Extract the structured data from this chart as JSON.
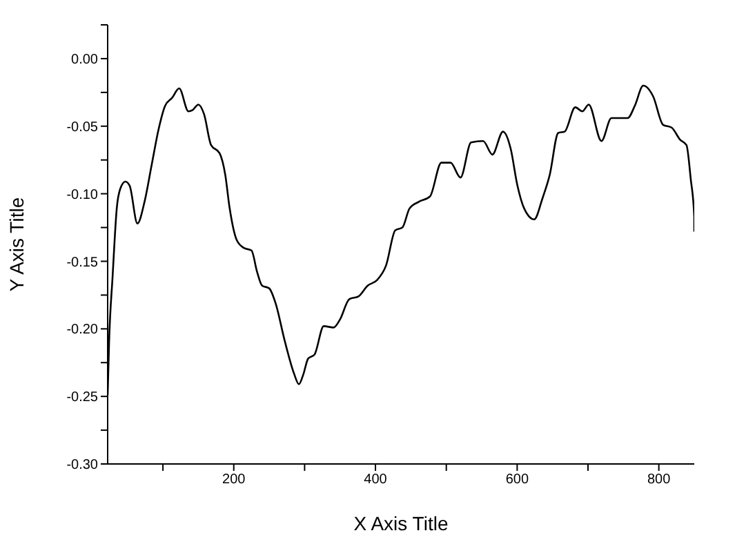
{
  "chart_data": {
    "type": "line",
    "xlabel": "X Axis Title",
    "ylabel": "Y Axis Title",
    "xlim": [
      22,
      850
    ],
    "ylim": [
      -0.3,
      0.025
    ],
    "xticks": [
      {
        "value": 100,
        "label": null
      },
      200,
      {
        "value": 300,
        "label": null
      },
      400,
      {
        "value": 500,
        "label": null
      },
      600,
      {
        "value": 700,
        "label": null
      },
      800
    ],
    "yticks": [
      {
        "value": -0.3,
        "label": "-0.30"
      },
      {
        "value": -0.275,
        "label": null
      },
      {
        "value": -0.25,
        "label": "-0.25"
      },
      {
        "value": -0.225,
        "label": null
      },
      {
        "value": -0.2,
        "label": "-0.20"
      },
      {
        "value": -0.175,
        "label": null
      },
      {
        "value": -0.15,
        "label": "-0.15"
      },
      {
        "value": -0.125,
        "label": null
      },
      {
        "value": -0.1,
        "label": "-0.10"
      },
      {
        "value": -0.075,
        "label": null
      },
      {
        "value": -0.05,
        "label": "-0.05"
      },
      {
        "value": -0.025,
        "label": null
      },
      {
        "value": 0,
        "label": "0.00"
      },
      {
        "value": 0.025,
        "label": null
      }
    ],
    "grid": false,
    "legend": false,
    "marker": "none",
    "line_style": "solid",
    "series": [
      {
        "color": "#000000",
        "x": [
          22,
          24,
          29,
          35,
          40,
          47,
          53,
          64,
          74,
          84,
          94,
          103,
          113,
          123,
          136,
          142,
          150,
          158,
          168,
          180,
          188,
          194,
          204,
          214,
          225,
          233,
          240,
          250,
          259,
          272,
          285,
          292,
          298,
          305,
          314,
          327,
          341,
          350,
          363,
          376,
          389,
          402,
          415,
          428,
          438,
          448,
          461,
          477,
          493,
          506,
          520,
          535,
          552,
          565,
          580,
          591,
          600,
          610,
          624,
          636,
          646,
          658,
          667,
          682,
          692,
          701,
          719,
          733,
          756,
          766,
          778,
          792,
          806,
          818,
          830,
          839,
          845,
          850,
          850
        ],
        "values": [
          -0.249,
          -0.21,
          -0.161,
          -0.11,
          -0.096,
          -0.091,
          -0.094,
          -0.122,
          -0.106,
          -0.079,
          -0.052,
          -0.035,
          -0.029,
          -0.022,
          -0.039,
          -0.038,
          -0.034,
          -0.041,
          -0.064,
          -0.07,
          -0.086,
          -0.11,
          -0.134,
          -0.14,
          -0.142,
          -0.158,
          -0.168,
          -0.17,
          -0.181,
          -0.209,
          -0.233,
          -0.241,
          -0.234,
          -0.222,
          -0.219,
          -0.198,
          -0.199,
          -0.193,
          -0.178,
          -0.176,
          -0.168,
          -0.164,
          -0.153,
          -0.127,
          -0.125,
          -0.111,
          -0.106,
          -0.102,
          -0.077,
          -0.077,
          -0.088,
          -0.062,
          -0.061,
          -0.071,
          -0.054,
          -0.067,
          -0.093,
          -0.111,
          -0.119,
          -0.103,
          -0.086,
          -0.055,
          -0.054,
          -0.036,
          -0.039,
          -0.034,
          -0.061,
          -0.044,
          -0.044,
          -0.035,
          -0.02,
          -0.028,
          -0.049,
          -0.051,
          -0.06,
          -0.064,
          -0.089,
          -0.117,
          -0.128
        ]
      }
    ]
  }
}
